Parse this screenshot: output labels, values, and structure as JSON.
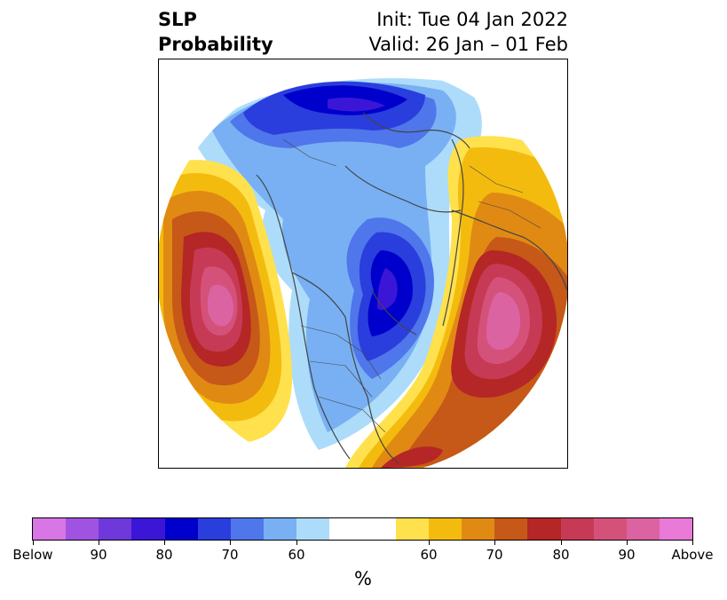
{
  "title": {
    "left_line1": "SLP",
    "left_line2": "Probability",
    "right_line1": "Init: Tue 04 Jan 2022",
    "right_line2": "Valid: 26 Jan – 01 Feb"
  },
  "colorbar": {
    "unit": "%",
    "colors": [
      "#d876e6",
      "#a053e0",
      "#6e38db",
      "#3b16d6",
      "#0000cc",
      "#2a3ddd",
      "#4f76ea",
      "#78b0f3",
      "#acdcfa",
      "#ffffff",
      "#ffffff",
      "#ffe14d",
      "#f4bb0f",
      "#e08a14",
      "#c65818",
      "#b52626",
      "#c73a55",
      "#d4527a",
      "#dc63a2",
      "#ea7ad8"
    ],
    "tick_labels": [
      "Below",
      "90",
      "80",
      "70",
      "60",
      "60",
      "70",
      "80",
      "90",
      "Above"
    ]
  },
  "map": {
    "projection": "north-polar stereographic",
    "colors": {
      "below_70": "#2a3ddd",
      "below_60": "#4f76ea",
      "below_50": "#78b0f3",
      "below_40": "#acdcfa",
      "below_80": "#0000cc",
      "below_90": "#3b16d6",
      "above_40": "#ffe14d",
      "above_50": "#f4bb0f",
      "above_60": "#e08a14",
      "above_70": "#c65818",
      "above_80": "#b52626",
      "above_90": "#c73a55",
      "above_95": "#d4527a",
      "above_max": "#dc63a2",
      "border": "#444444"
    }
  }
}
